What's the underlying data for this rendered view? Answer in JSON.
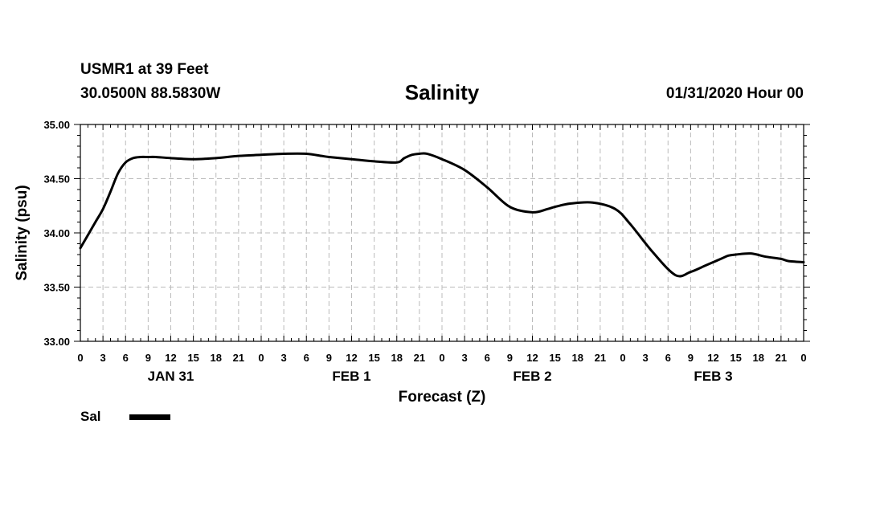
{
  "header": {
    "station": "USMR1 at 39 Feet",
    "coordinates": "30.0500N 88.5830W",
    "title": "Salinity",
    "datetime": "01/31/2020 Hour 00"
  },
  "legend": {
    "label": "Sal",
    "color": "#000000"
  },
  "chart_data": {
    "type": "line",
    "title": "Salinity",
    "xlabel": "Forecast (Z)",
    "ylabel": "Salinity (psu)",
    "ylim": [
      33.0,
      35.0
    ],
    "xlim_hours": [
      0,
      96
    ],
    "yticks": [
      "33.00",
      "33.50",
      "34.00",
      "34.50",
      "35.00"
    ],
    "yvals": [
      33.0,
      33.5,
      34.0,
      34.5,
      35.0
    ],
    "xtick_labels": [
      "0",
      "3",
      "6",
      "9",
      "12",
      "15",
      "18",
      "21",
      "0",
      "3",
      "6",
      "9",
      "12",
      "15",
      "18",
      "21",
      "0",
      "3",
      "6",
      "9",
      "12",
      "15",
      "18",
      "21",
      "0",
      "3",
      "6",
      "9",
      "12",
      "15",
      "18",
      "21",
      "0"
    ],
    "day_labels": [
      {
        "label": "JAN 31",
        "hour": 12
      },
      {
        "label": "FEB 1",
        "hour": 36
      },
      {
        "label": "FEB 2",
        "hour": 60
      },
      {
        "label": "FEB 3",
        "hour": 84
      }
    ],
    "grid": true,
    "series": [
      {
        "name": "Sal",
        "color": "#000000",
        "x": [
          0,
          1,
          2,
          3,
          4,
          5,
          6,
          7,
          8,
          9,
          10,
          12,
          15,
          18,
          21,
          24,
          27,
          30,
          32,
          33,
          36,
          39,
          42,
          43,
          44,
          45,
          46,
          48,
          51,
          54,
          57,
          60,
          62,
          63,
          65,
          68,
          71,
          73,
          76,
          79,
          81,
          83,
          85,
          86,
          87,
          89,
          91,
          93,
          94,
          96
        ],
        "y": [
          33.86,
          33.98,
          34.1,
          34.22,
          34.38,
          34.55,
          34.65,
          34.69,
          34.7,
          34.7,
          34.7,
          34.69,
          34.68,
          34.69,
          34.71,
          34.72,
          34.73,
          34.73,
          34.71,
          34.7,
          34.68,
          34.66,
          34.65,
          34.69,
          34.72,
          34.73,
          34.73,
          34.68,
          34.58,
          34.42,
          34.24,
          34.19,
          34.22,
          34.24,
          34.27,
          34.28,
          34.22,
          34.08,
          33.82,
          33.61,
          33.64,
          33.7,
          33.76,
          33.79,
          33.8,
          33.81,
          33.78,
          33.76,
          33.74,
          33.73
        ]
      }
    ]
  }
}
